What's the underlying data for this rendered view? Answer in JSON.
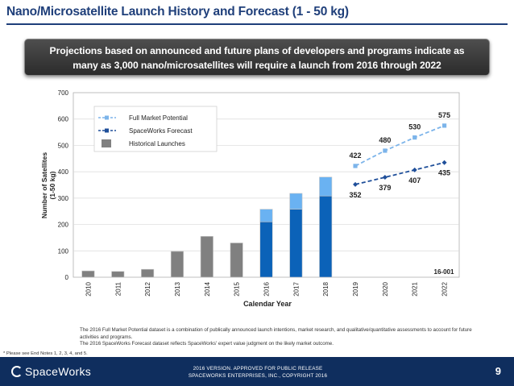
{
  "slide": {
    "title": "Nano/Microsatellite Launch History and Forecast (1 - 50 kg)",
    "banner_line1": "Projections based on announced and future plans of developers and programs indicate as",
    "banner_line2": "many as 3,000 nano/microsatellites will require a launch from 2016 through 2022"
  },
  "chart_data": {
    "type": "bar",
    "xlabel": "Calendar Year",
    "ylabel_line1": "Number of Satellites",
    "ylabel_line2": "(1-50 kg)",
    "ylim": [
      0,
      700
    ],
    "yticks": [
      0,
      100,
      200,
      300,
      400,
      500,
      600,
      700
    ],
    "categories": [
      "2010",
      "2011",
      "2012",
      "2013",
      "2014",
      "2015",
      "2016",
      "2017",
      "2018",
      "2019",
      "2020",
      "2021",
      "2022"
    ],
    "grid": true,
    "legend_position": "top-left",
    "legend": [
      {
        "label": "Full Market Potential",
        "kind": "line-dashed",
        "color": "#7cb4ea"
      },
      {
        "label": "SpaceWorks Forecast",
        "kind": "line-dashed",
        "color": "#1f4f9a"
      },
      {
        "label": "Historical Launches",
        "kind": "bar",
        "color": "#808080"
      }
    ],
    "historical_launches": {
      "name": "Historical Launches",
      "categories": [
        "2010",
        "2011",
        "2012",
        "2013",
        "2014",
        "2015"
      ],
      "values": [
        24,
        22,
        30,
        98,
        155,
        130
      ],
      "color": "#808080"
    },
    "forecast_bars": {
      "categories": [
        "2016",
        "2017",
        "2018"
      ],
      "spaceworks_forecast": [
        210,
        258,
        308
      ],
      "full_market_potential": [
        258,
        318,
        380
      ],
      "color_forecast": "#0b62b8",
      "color_full": "#6ab2f2"
    },
    "full_market_potential_line": {
      "name": "Full Market Potential",
      "categories": [
        "2019",
        "2020",
        "2021",
        "2022"
      ],
      "values": [
        422,
        480,
        530,
        575
      ],
      "color": "#7cb4ea"
    },
    "spaceworks_forecast_line": {
      "name": "SpaceWorks Forecast",
      "categories": [
        "2019",
        "2020",
        "2021",
        "2022"
      ],
      "values": [
        352,
        379,
        407,
        435
      ],
      "color": "#1f4f9a"
    },
    "annotation": "16-001",
    "bar_border": "#c8c8c8",
    "plot_background": "#ffffff",
    "plot_border": "#b0b0b0"
  },
  "notes": {
    "line1": "The 2016 Full Market Potential dataset is a combination of publically announced launch intentions, market research, and qualitative/quantitative assessments to account for future activities and programs.",
    "line2": "The 2016 SpaceWorks Forecast dataset reflects SpaceWorks' expert value judgment on the likely market outcome.",
    "footnote": "* Please see End Notes 1, 2, 3, 4, and 5."
  },
  "footer": {
    "logo_text": "SpaceWorks",
    "line1": "2016 VERSION. APPROVED FOR PUBLIC RELEASE",
    "line2": "SPACEWORKS ENTERPRISES, INC., COPYRIGHT 2016",
    "page_number": "9"
  }
}
